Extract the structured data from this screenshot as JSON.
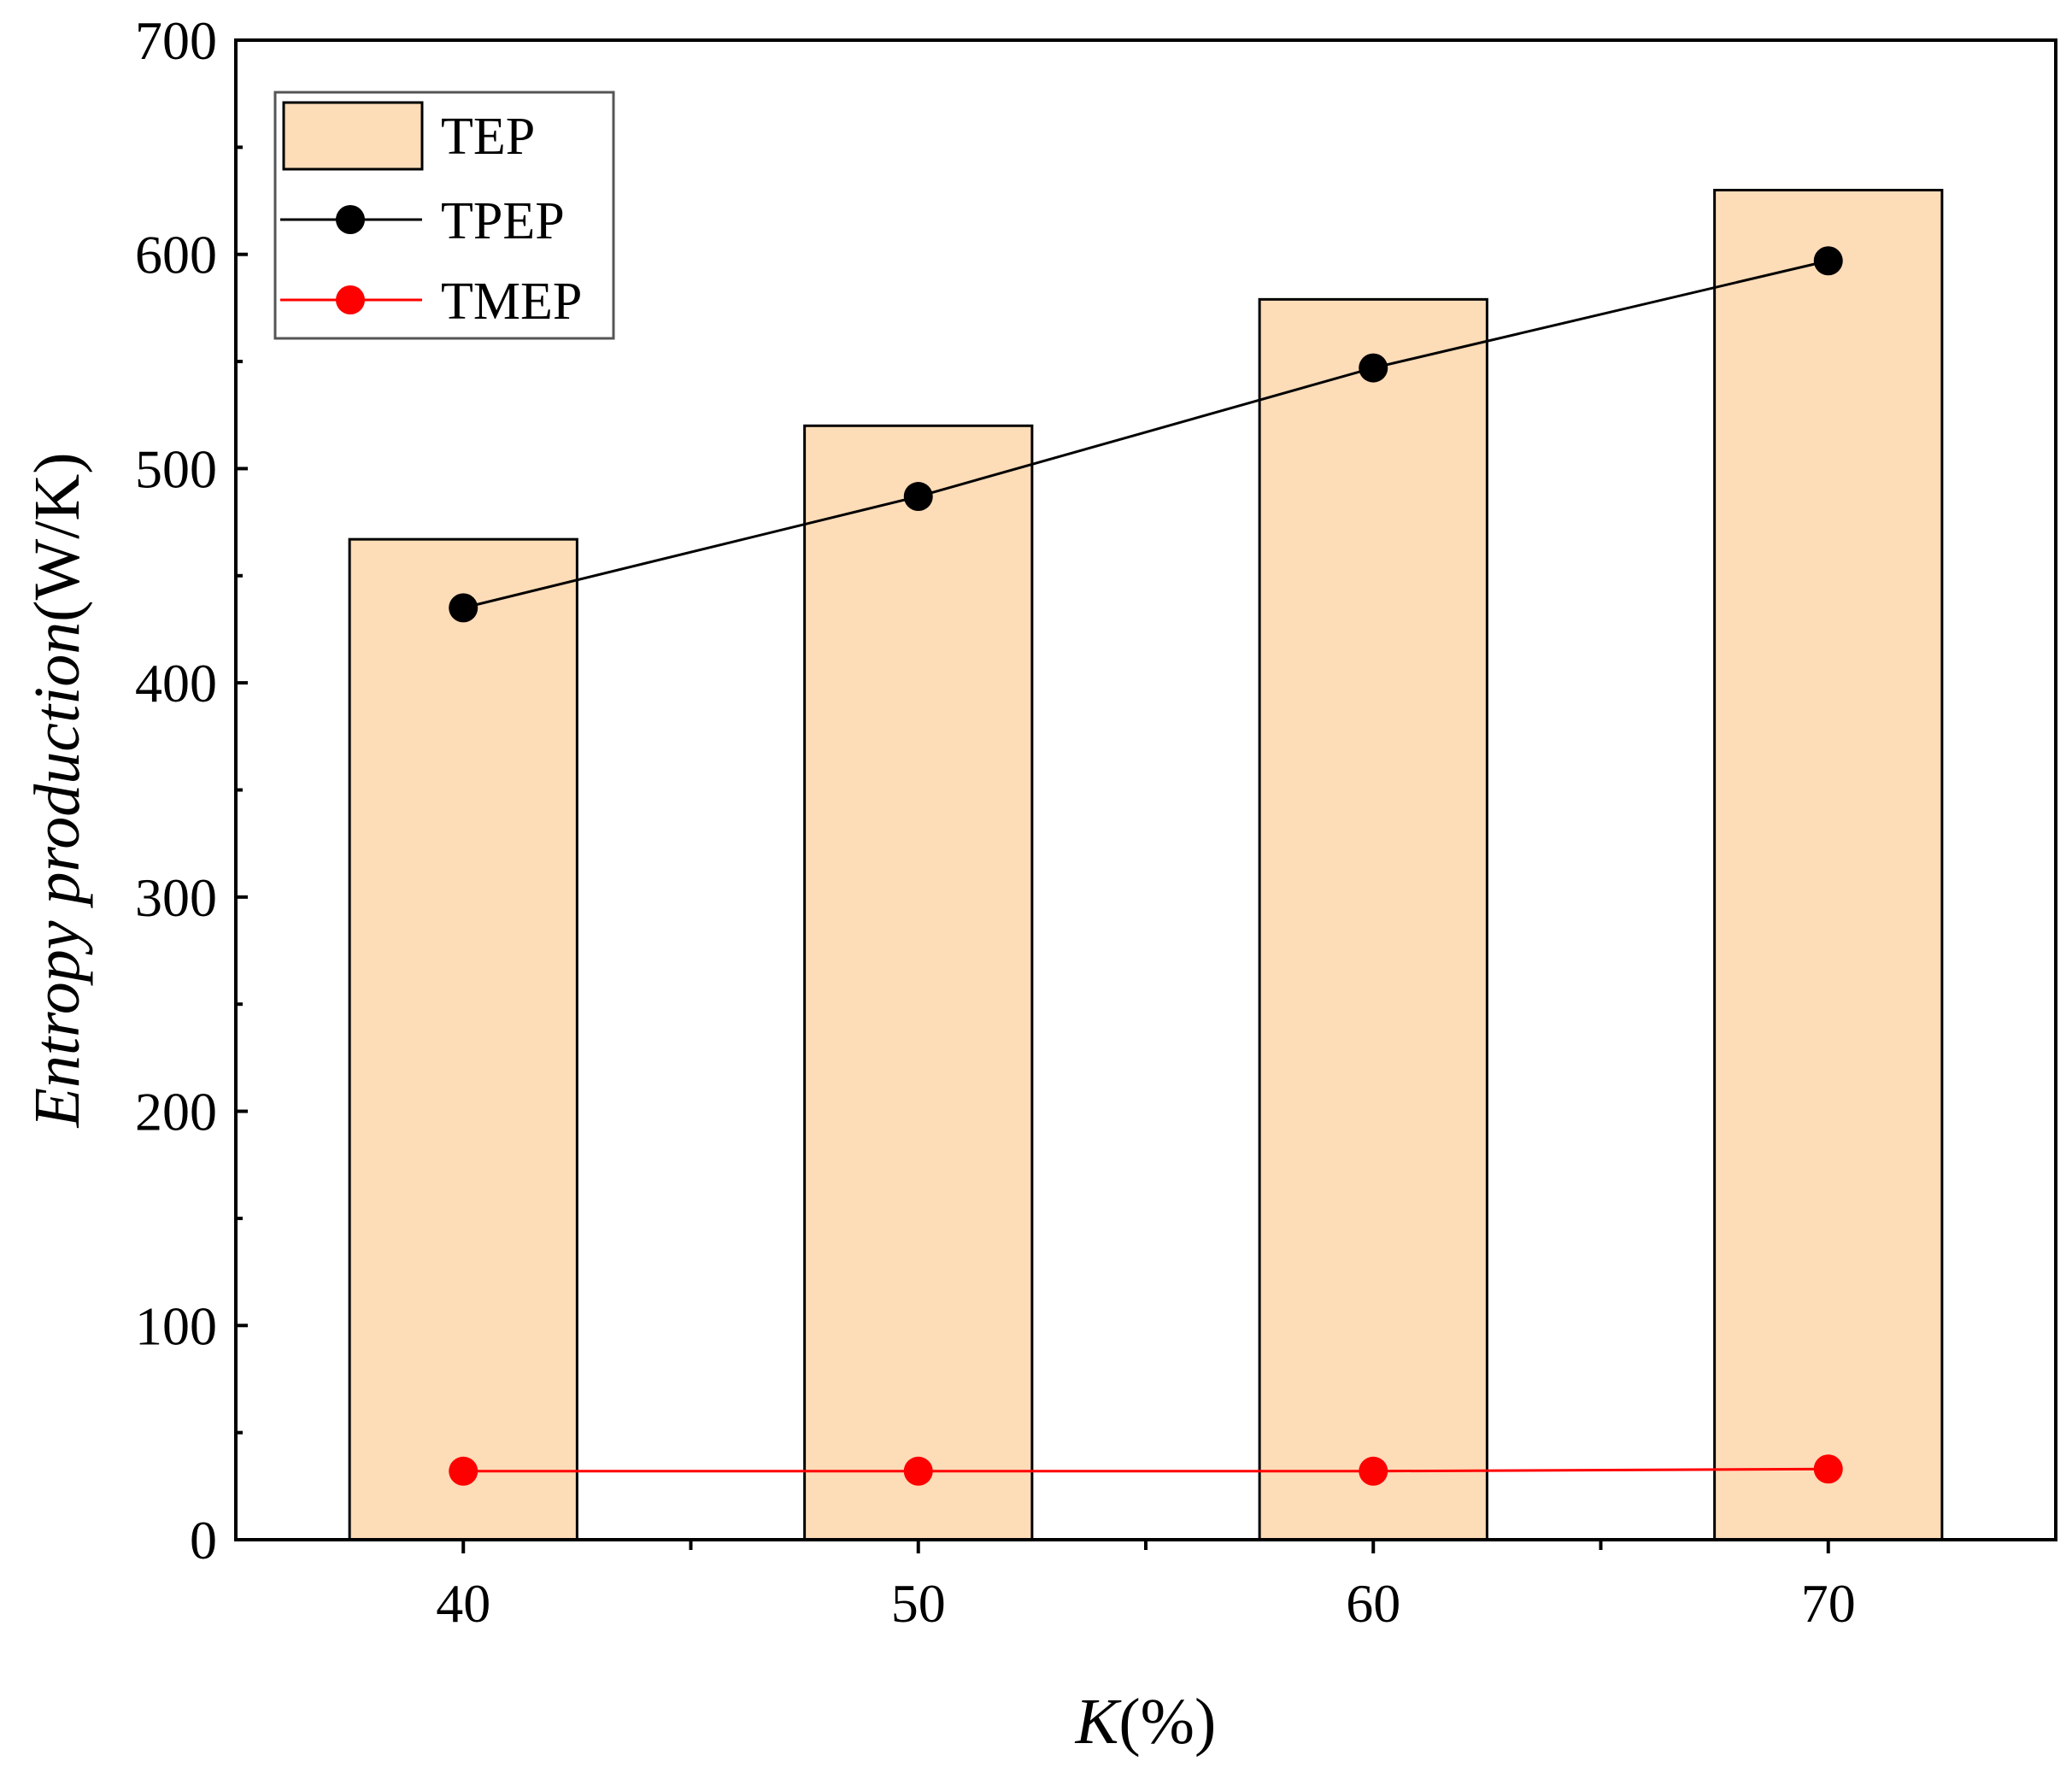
{
  "chart_data": {
    "type": "bar",
    "title": "",
    "xlabel_italic": "K",
    "xlabel_rest": "(%)",
    "ylabel_italic": "Entropy production",
    "ylabel_rest": "(W/K)",
    "categories": [
      "40",
      "50",
      "60",
      "70"
    ],
    "ylim": [
      0,
      700
    ],
    "yticks": [
      0,
      100,
      200,
      300,
      400,
      500,
      600,
      700
    ],
    "legend_position": "top-left",
    "series": [
      {
        "name": "TEP",
        "kind": "bar",
        "color": "#FDDCB8",
        "values": [
          467,
          520,
          579,
          630
        ]
      },
      {
        "name": "TPEP",
        "kind": "line",
        "color": "#000000",
        "values": [
          435,
          487,
          547,
          597
        ]
      },
      {
        "name": "TMEP",
        "kind": "line",
        "color": "#FF0000",
        "values": [
          32,
          32,
          32,
          33
        ]
      }
    ]
  }
}
